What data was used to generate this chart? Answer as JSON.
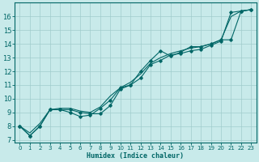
{
  "xlabel": "Humidex (Indice chaleur)",
  "xlim": [
    -0.5,
    23.5
  ],
  "ylim": [
    6.8,
    17.0
  ],
  "yticks": [
    7,
    8,
    9,
    10,
    11,
    12,
    13,
    14,
    15,
    16
  ],
  "xticks": [
    0,
    1,
    2,
    3,
    4,
    5,
    6,
    7,
    8,
    9,
    10,
    11,
    12,
    13,
    14,
    15,
    16,
    17,
    18,
    19,
    20,
    21,
    22,
    23
  ],
  "background_color": "#c8eaea",
  "grid_color": "#a0cccc",
  "line_color": "#006666",
  "line1_x": [
    0,
    1,
    2,
    3,
    4,
    5,
    6,
    7,
    8,
    9,
    10,
    11,
    12,
    13,
    14,
    15,
    16,
    17,
    18,
    19,
    20,
    21,
    22,
    23
  ],
  "line1_y": [
    8.0,
    7.3,
    8.0,
    9.2,
    9.2,
    9.0,
    8.7,
    8.8,
    9.3,
    9.9,
    10.8,
    11.0,
    11.5,
    12.5,
    12.8,
    13.2,
    13.3,
    13.5,
    13.6,
    13.9,
    14.2,
    16.3,
    16.4,
    16.5
  ],
  "line2_x": [
    0,
    1,
    2,
    3,
    4,
    5,
    6,
    7,
    8,
    9,
    10,
    11,
    12,
    13,
    14,
    15,
    16,
    17,
    18,
    19,
    20,
    21,
    22,
    23
  ],
  "line2_y": [
    8.0,
    7.3,
    8.0,
    9.2,
    9.2,
    9.2,
    9.0,
    8.9,
    8.9,
    9.5,
    10.7,
    11.0,
    12.0,
    12.8,
    13.5,
    13.1,
    13.4,
    13.8,
    13.8,
    14.0,
    14.3,
    14.3,
    16.4,
    16.5
  ],
  "line3_x": [
    0,
    1,
    2,
    3,
    4,
    5,
    6,
    7,
    8,
    9,
    10,
    11,
    12,
    13,
    14,
    15,
    16,
    17,
    18,
    19,
    20,
    21,
    22,
    23
  ],
  "line3_y": [
    8.0,
    7.5,
    8.2,
    9.2,
    9.3,
    9.3,
    9.1,
    9.0,
    9.4,
    10.2,
    10.8,
    11.2,
    11.8,
    12.6,
    13.0,
    13.3,
    13.5,
    13.7,
    13.8,
    14.0,
    14.3,
    16.0,
    16.4,
    16.5
  ]
}
